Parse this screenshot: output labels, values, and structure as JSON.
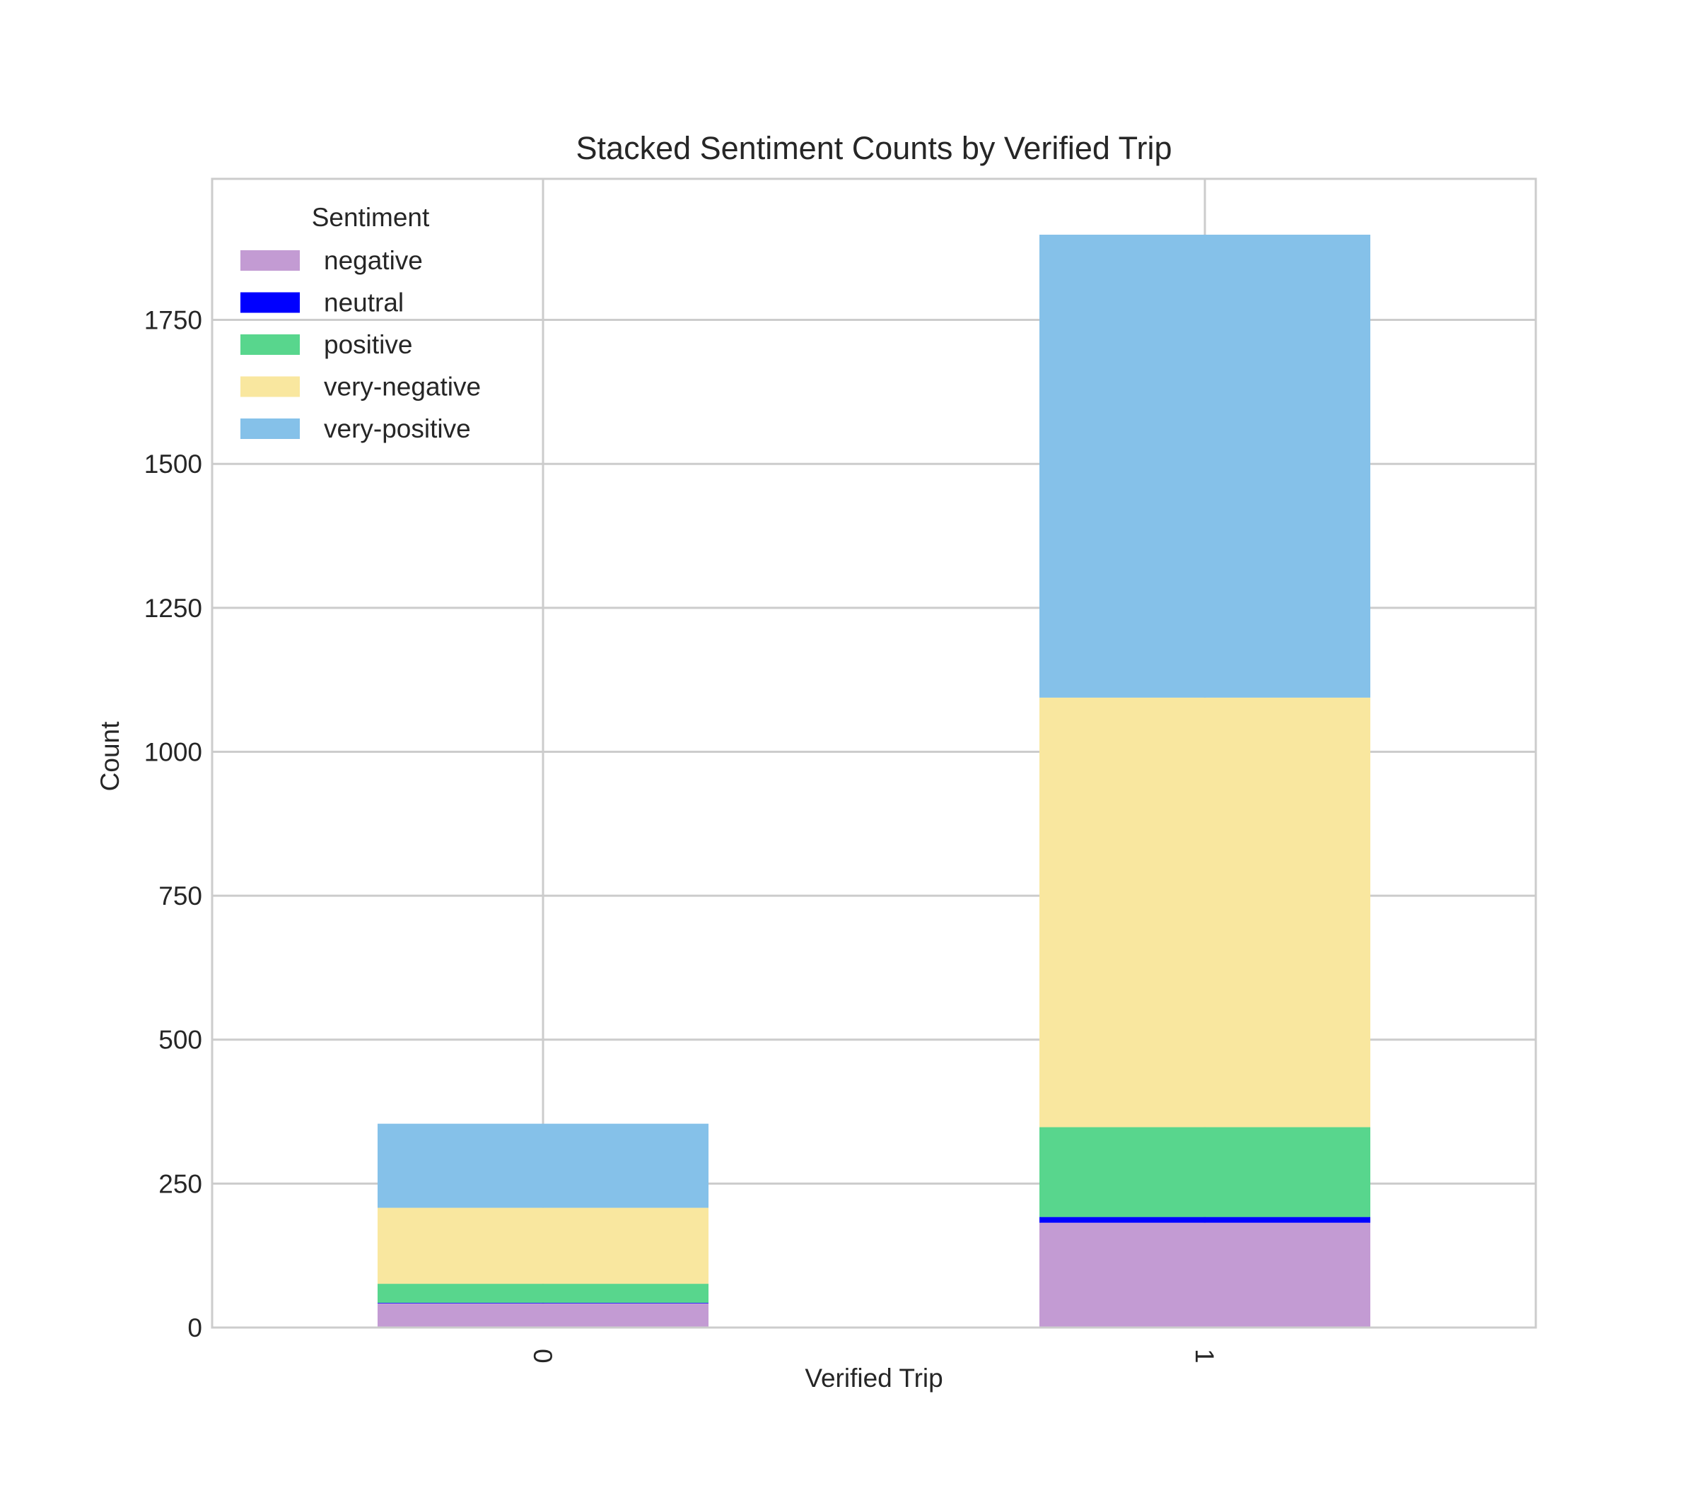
{
  "chart_data": {
    "type": "bar",
    "stacked": true,
    "title": "Stacked Sentiment Counts by Verified Trip",
    "xlabel": "Verified Trip",
    "ylabel": "Count",
    "categories": [
      "0",
      "1"
    ],
    "ylim": [
      0,
      1995
    ],
    "yticks": [
      0,
      250,
      500,
      750,
      1000,
      1250,
      1500,
      1750
    ],
    "grid": true,
    "legend": {
      "title": "Sentiment",
      "position": "top-left"
    },
    "series": [
      {
        "name": "negative",
        "color": "#c39bd3",
        "values": [
          42,
          182
        ]
      },
      {
        "name": "neutral",
        "color": "#0000ff",
        "values": [
          1,
          10
        ]
      },
      {
        "name": "positive",
        "color": "#58d68d",
        "values": [
          33,
          156
        ]
      },
      {
        "name": "very-negative",
        "color": "#f9e79f",
        "values": [
          132,
          746
        ]
      },
      {
        "name": "very-positive",
        "color": "#85c1e9",
        "values": [
          146,
          804
        ]
      }
    ]
  }
}
